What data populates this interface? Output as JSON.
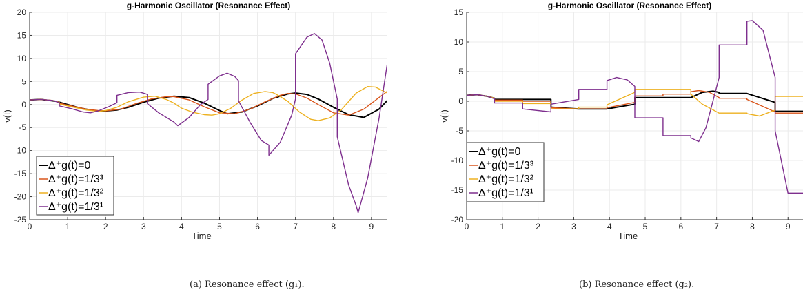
{
  "captions": [
    "(a) Resonance effect (g₁).",
    "(b) Resonance effect (g₂)."
  ],
  "chart_data": [
    {
      "type": "line",
      "title": "g-Harmonic Oscillator (Resonance Effect)",
      "xlabel": "Time",
      "ylabel": "v(t)",
      "xlim": [
        0,
        9.42
      ],
      "ylim": [
        -25,
        20
      ],
      "xticks": [
        0,
        1,
        2,
        3,
        4,
        5,
        6,
        7,
        8,
        9
      ],
      "yticks": [
        -25,
        -20,
        -15,
        -10,
        -5,
        0,
        5,
        10,
        15,
        20
      ],
      "grid": true,
      "legend_position": "lower-left",
      "series": [
        {
          "name": "Δ⁺g(t)=0",
          "color": "#000000",
          "x": [
            0,
            0.3,
            0.7,
            1.0,
            1.3,
            1.6,
            1.8,
            2.0,
            2.3,
            2.6,
            3.0,
            3.4,
            3.8,
            4.2,
            4.6,
            5.0,
            5.2,
            5.6,
            6.0,
            6.4,
            6.8,
            7.0,
            7.3,
            7.6,
            8.0,
            8.4,
            8.8,
            9.2,
            9.42
          ],
          "y": [
            1,
            1.1,
            0.7,
            0,
            -0.7,
            -1.2,
            -1.4,
            -1.4,
            -1.2,
            -0.6,
            0.5,
            1.4,
            1.8,
            1.5,
            0.3,
            -1.3,
            -2.0,
            -1.6,
            -0.3,
            1.3,
            2.3,
            2.5,
            2.2,
            1.2,
            -0.6,
            -2.2,
            -2.8,
            -1.0,
            0.9
          ]
        },
        {
          "name": "Δ⁺g(t)=1/3³",
          "color": "#d9541a",
          "x": [
            0,
            0.3,
            0.6,
            0.78,
            0.78,
            1.1,
            1.5,
            1.8,
            2.0,
            2.4,
            2.8,
            3.2,
            3.6,
            3.8,
            4.2,
            4.6,
            5.0,
            5.4,
            5.8,
            6.2,
            6.6,
            6.8,
            7.0,
            7.3,
            7.6,
            8.0,
            8.4,
            8.8,
            9.2,
            9.42
          ],
          "y": [
            1,
            1.1,
            0.9,
            0.5,
            0.3,
            -0.3,
            -1.0,
            -1.3,
            -1.4,
            -1.0,
            0.2,
            1.2,
            1.7,
            1.7,
            1.0,
            -0.5,
            -1.8,
            -2.0,
            -1.0,
            0.6,
            2.0,
            2.4,
            2.3,
            1.4,
            0.0,
            -1.8,
            -2.3,
            -1.0,
            1.5,
            2.9
          ]
        },
        {
          "name": "Δ⁺g(t)=1/3²",
          "color": "#edb120",
          "x": [
            0,
            0.3,
            0.6,
            0.78,
            0.78,
            1.1,
            1.5,
            1.8,
            2.0,
            2.3,
            2.6,
            3.0,
            3.3,
            3.6,
            3.8,
            4.0,
            4.3,
            4.6,
            4.8,
            5.0,
            5.3,
            5.6,
            5.9,
            6.2,
            6.4,
            6.5,
            6.8,
            7.1,
            7.4,
            7.6,
            7.9,
            8.2,
            8.6,
            8.9,
            9.1,
            9.42
          ],
          "y": [
            1,
            1.1,
            0.9,
            0.5,
            0.1,
            -0.5,
            -1.2,
            -1.5,
            -1.3,
            -0.6,
            0.6,
            1.6,
            1.8,
            1.1,
            0.3,
            -0.8,
            -1.7,
            -2.2,
            -2.3,
            -2.0,
            -0.8,
            1.0,
            2.4,
            2.8,
            2.6,
            2.2,
            0.7,
            -1.6,
            -3.2,
            -3.5,
            -2.9,
            -1.2,
            2.5,
            3.9,
            3.8,
            2.5
          ]
        },
        {
          "name": "Δ⁺g(t)=1/3¹",
          "color": "#7e2f8e",
          "x": [
            0,
            0.3,
            0.6,
            0.78,
            0.78,
            1.1,
            1.4,
            1.6,
            1.8,
            2.1,
            2.3,
            2.3,
            2.6,
            2.9,
            3.1,
            3.1,
            3.4,
            3.8,
            3.9,
            3.9,
            4.2,
            4.5,
            4.7,
            4.7,
            5.0,
            5.2,
            5.4,
            5.5,
            5.5,
            5.8,
            6.1,
            6.3,
            6.3,
            6.6,
            6.9,
            7.0,
            7.0,
            7.3,
            7.5,
            7.7,
            7.9,
            8.1,
            8.1,
            8.4,
            8.6,
            8.65,
            8.65,
            8.9,
            9.2,
            9.42
          ],
          "y": [
            1,
            1.1,
            0.9,
            0.4,
            -0.3,
            -0.9,
            -1.6,
            -1.8,
            -1.4,
            -0.4,
            0.4,
            2.0,
            2.6,
            2.7,
            2.2,
            0.2,
            -1.8,
            -3.8,
            -4.6,
            -4.6,
            -2.8,
            0.0,
            1.1,
            4.4,
            6.2,
            6.8,
            6.1,
            5.2,
            0.8,
            -3.8,
            -7.8,
            -8.8,
            -11.0,
            -8.2,
            -2.3,
            1.2,
            11.0,
            14.6,
            15.4,
            14.0,
            9.0,
            1.2,
            -7.0,
            -17.5,
            -22.0,
            -23.5,
            -23.5,
            -16.0,
            -3.0,
            9.0
          ]
        }
      ]
    },
    {
      "type": "line",
      "title": "g-Harmonic Oscillator (Resonance Effect)",
      "xlabel": "Time",
      "ylabel": "v(t)",
      "xlim": [
        0,
        9.42
      ],
      "ylim": [
        -20,
        15
      ],
      "xticks": [
        0,
        1,
        2,
        3,
        4,
        5,
        6,
        7,
        8,
        9
      ],
      "yticks": [
        -20,
        -15,
        -10,
        -5,
        0,
        5,
        10,
        15
      ],
      "grid": true,
      "legend_position": "lower-left",
      "series": [
        {
          "name": "Δ⁺g(t)=0",
          "color": "#000000",
          "x": [
            0,
            0.3,
            0.6,
            0.78,
            0.78,
            1.57,
            1.57,
            2.36,
            2.36,
            3.14,
            3.14,
            3.93,
            3.93,
            4.71,
            4.71,
            5.5,
            5.5,
            6.28,
            6.28,
            6.6,
            6.9,
            7.07,
            7.07,
            7.85,
            7.85,
            8.64,
            8.64,
            9.42
          ],
          "y": [
            1,
            1.1,
            0.8,
            0.5,
            0.3,
            0.3,
            0.3,
            0.3,
            -1.0,
            -1.3,
            -1.3,
            -1.3,
            -1.3,
            -0.5,
            0.6,
            0.6,
            0.6,
            0.6,
            0.6,
            1.5,
            1.7,
            1.5,
            1.3,
            1.3,
            1.3,
            -0.2,
            -1.7,
            -1.7
          ]
        },
        {
          "name": "Δ⁺g(t)=1/3³",
          "color": "#d9541a",
          "x": [
            0,
            0.3,
            0.6,
            0.78,
            0.78,
            1.57,
            1.57,
            2.36,
            2.36,
            3.14,
            3.14,
            3.93,
            3.93,
            4.71,
            4.71,
            5.5,
            5.5,
            6.28,
            6.28,
            6.5,
            6.8,
            7.07,
            7.07,
            7.85,
            7.85,
            8.64,
            8.64,
            9.42
          ],
          "y": [
            1,
            1.1,
            0.8,
            0.5,
            0.2,
            0.2,
            0.0,
            0.0,
            -1.1,
            -1.3,
            -1.3,
            -1.3,
            -1.1,
            -0.2,
            0.9,
            0.9,
            1.2,
            1.2,
            1.6,
            1.8,
            1.5,
            0.6,
            0.5,
            0.5,
            0.3,
            -1.8,
            -2.0,
            -2.0
          ]
        },
        {
          "name": "Δ⁺g(t)=1/3²",
          "color": "#edb120",
          "x": [
            0,
            0.3,
            0.6,
            0.78,
            0.78,
            1.57,
            1.57,
            2.36,
            2.36,
            3.14,
            3.14,
            3.93,
            3.93,
            4.71,
            4.71,
            5.5,
            5.5,
            6.28,
            6.28,
            6.6,
            7.07,
            7.07,
            7.85,
            7.85,
            8.2,
            8.64,
            8.64,
            9.2,
            9.42
          ],
          "y": [
            1,
            1.1,
            0.8,
            0.5,
            0.0,
            0.0,
            -0.4,
            -0.4,
            -1.3,
            -1.3,
            -1.0,
            -1.0,
            -0.6,
            1.5,
            2.0,
            2.0,
            2.0,
            2.0,
            1.2,
            -0.5,
            -2.0,
            -2.0,
            -2.0,
            -2.1,
            -2.5,
            -1.5,
            0.8,
            0.8,
            0.8
          ]
        },
        {
          "name": "Δ⁺g(t)=1/3¹",
          "color": "#7e2f8e",
          "x": [
            0,
            0.3,
            0.6,
            0.78,
            0.78,
            1.57,
            1.57,
            2.36,
            2.36,
            3.14,
            3.14,
            3.93,
            3.93,
            4.2,
            4.5,
            4.71,
            4.71,
            5.5,
            5.5,
            6.28,
            6.28,
            6.5,
            6.7,
            7.07,
            7.07,
            7.85,
            7.85,
            8.0,
            8.3,
            8.64,
            8.64,
            9.0,
            9.42
          ],
          "y": [
            1,
            1.1,
            0.8,
            0.4,
            -0.3,
            -0.3,
            -1.3,
            -1.8,
            -0.5,
            0.3,
            2.0,
            2.0,
            3.5,
            4.0,
            3.6,
            2.5,
            -2.8,
            -2.8,
            -5.8,
            -5.8,
            -6.2,
            -6.8,
            -4.5,
            4.0,
            9.5,
            9.5,
            13.5,
            13.6,
            12.0,
            4.0,
            -5.0,
            -15.5,
            -15.5
          ]
        }
      ]
    }
  ]
}
